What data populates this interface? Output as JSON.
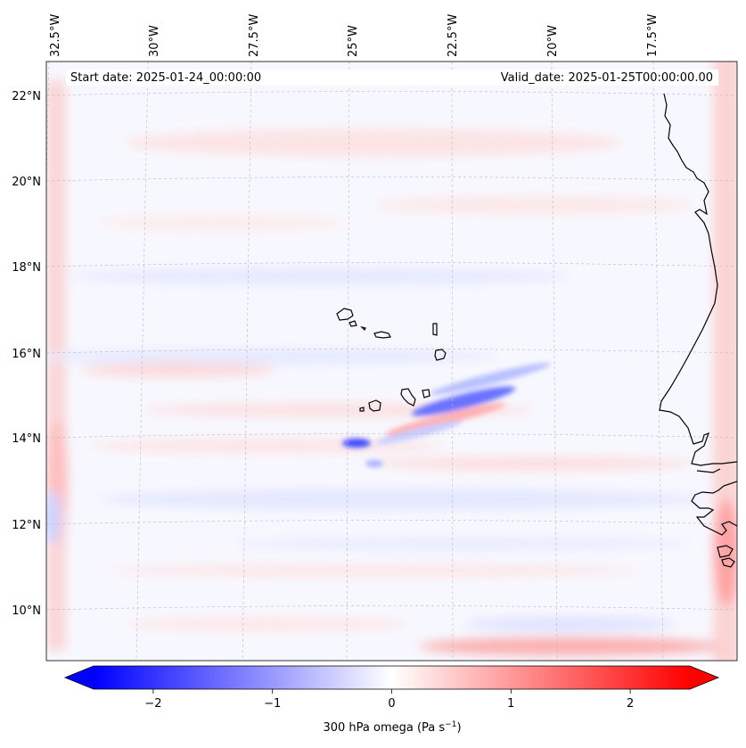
{
  "map": {
    "header": {
      "start_date": "Start date: 2025-01-24_00:00:00",
      "valid_date": "Valid_date: 2025-01-25T00:00:00.00"
    },
    "lon_labels": [
      "32.5°W",
      "30°W",
      "27.5°W",
      "25°W",
      "22.5°W",
      "20°W",
      "17.5°W"
    ],
    "lat_labels": [
      "22°N",
      "20°N",
      "18°N",
      "16°N",
      "14°N",
      "12°N",
      "10°N"
    ],
    "colorbar": {
      "ticks": [
        "−2",
        "−1",
        "0",
        "1",
        "2"
      ],
      "tick_values": [
        -2,
        -1,
        0,
        1,
        2
      ],
      "range": [
        -2.5,
        2.5
      ],
      "label": "300 hPa omega (Pa s",
      "label_sup": "−1",
      "label_end": ")"
    },
    "colors": {
      "negative": "#0000ff",
      "neutral": "#ffffff",
      "positive": "#ff0000",
      "coastline": "#000000",
      "gridline": "#b8b8b8"
    }
  }
}
